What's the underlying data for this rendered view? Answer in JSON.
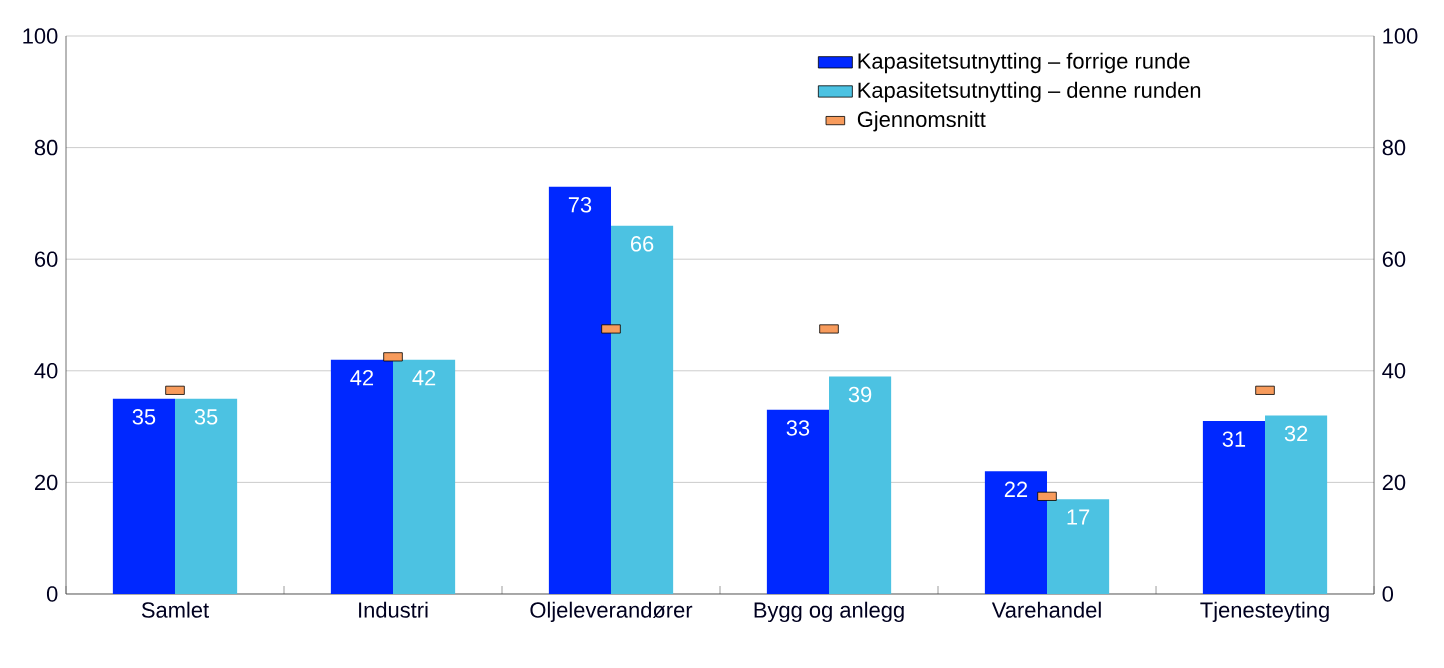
{
  "chart_data": {
    "type": "bar",
    "categories": [
      "Samlet",
      "Industri",
      "Oljeleverandører",
      "Bygg og anlegg",
      "Varehandel",
      "Tjenesteyting"
    ],
    "series": [
      {
        "name": "Kapasitetsutnytting – forrige runde",
        "color": "#0028ff",
        "values": [
          35,
          42,
          73,
          33,
          22,
          31
        ],
        "value_labels": [
          "35",
          "42",
          "73",
          "33",
          "22",
          "31"
        ]
      },
      {
        "name": "Kapasitetsutnytting – denne runden",
        "color": "#4cc2e2",
        "values": [
          35,
          42,
          66,
          39,
          17,
          32
        ],
        "value_labels": [
          "35",
          "42",
          "66",
          "39",
          "17",
          "32"
        ]
      },
      {
        "name": "Gjennomsnitt",
        "type": "scatter",
        "color": "#f79b5c",
        "x": [
          "Samlet",
          "Industri",
          "Oljeleverandører",
          "Bygg og anlegg",
          "Varehandel",
          "Tjenesteyting"
        ],
        "values": [
          36.5,
          42.5,
          47.5,
          47.5,
          17.5,
          36.5
        ]
      }
    ],
    "ylim": [
      0,
      100
    ],
    "yticks": [
      0,
      20,
      40,
      60,
      80,
      100
    ],
    "y2lim": [
      0,
      100
    ],
    "y2ticks": [
      0,
      20,
      40,
      60,
      80,
      100
    ],
    "grid": "y",
    "legend": "top right"
  }
}
